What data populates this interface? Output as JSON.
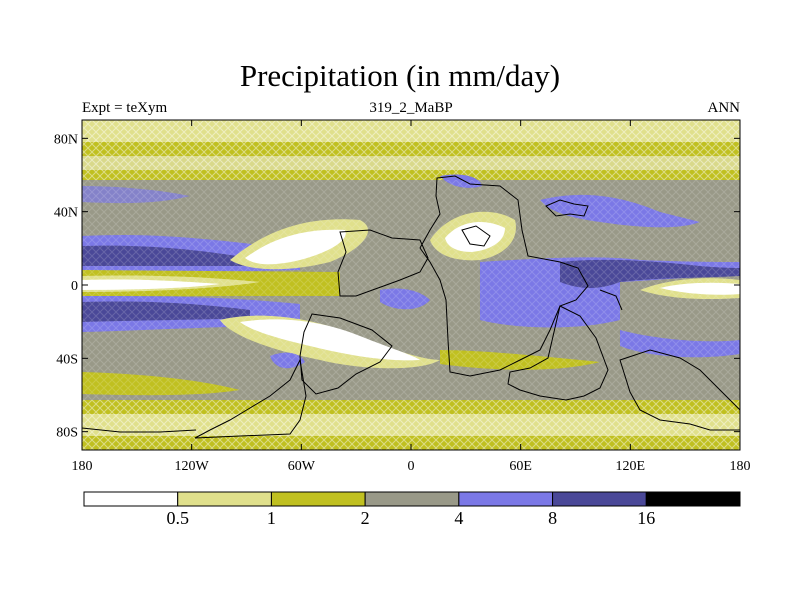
{
  "title": "Precipitation (in mm/day)",
  "subtitle_left": "Expt = teXym",
  "subtitle_center": "319_2_MaBP",
  "subtitle_right": "ANN",
  "x_ticks": [
    {
      "value": -180,
      "label": "180"
    },
    {
      "value": -120,
      "label": "120W"
    },
    {
      "value": -60,
      "label": "60W"
    },
    {
      "value": 0,
      "label": "0"
    },
    {
      "value": 60,
      "label": "60E"
    },
    {
      "value": 120,
      "label": "120E"
    },
    {
      "value": 180,
      "label": "180"
    }
  ],
  "y_ticks": [
    {
      "value": 80,
      "label": "80N"
    },
    {
      "value": 40,
      "label": "40N"
    },
    {
      "value": 0,
      "label": "0"
    },
    {
      "value": -40,
      "label": "40S"
    },
    {
      "value": -80,
      "label": "80S"
    }
  ],
  "colorbar": {
    "levels": [
      "0.5",
      "1",
      "2",
      "4",
      "8",
      "16"
    ],
    "colors": [
      "#ffffff",
      "#e0e08c",
      "#c0c020",
      "#999988",
      "#7b78e6",
      "#4a4898",
      "#000000"
    ]
  }
}
